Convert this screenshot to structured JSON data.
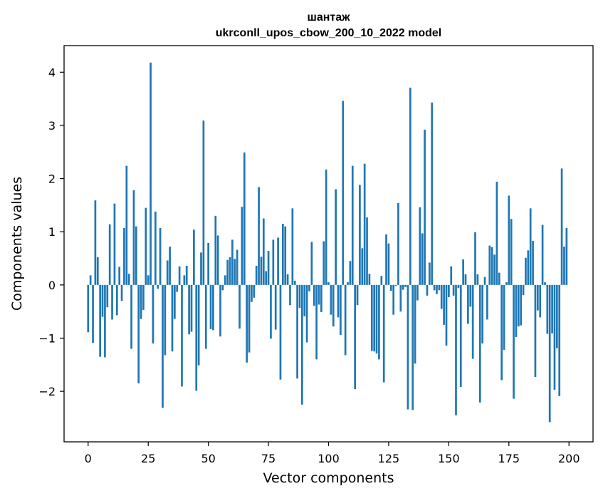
{
  "chart_data": {
    "type": "bar",
    "title": "шантаж",
    "subtitle": "ukrconll_upos_cbow_200_10_2022 model",
    "xlabel": "Vector components",
    "ylabel": "Components values",
    "xlim": [
      -10,
      210
    ],
    "ylim": [
      -2.95,
      4.5
    ],
    "xticks": [
      0,
      25,
      50,
      75,
      100,
      125,
      150,
      175,
      200
    ],
    "xtick_labels": [
      "0",
      "25",
      "50",
      "75",
      "100",
      "125",
      "150",
      "175",
      "200"
    ],
    "yticks": [
      -2,
      -1,
      0,
      1,
      2,
      3,
      4
    ],
    "ytick_labels": [
      "−2",
      "−1",
      "0",
      "1",
      "2",
      "3",
      "4"
    ],
    "grid": false,
    "bar_color": "#1f77b4",
    "x": [
      0,
      1,
      2,
      3,
      4,
      5,
      6,
      7,
      8,
      9,
      10,
      11,
      12,
      13,
      14,
      15,
      16,
      17,
      18,
      19,
      20,
      21,
      22,
      23,
      24,
      25,
      26,
      27,
      28,
      29,
      30,
      31,
      32,
      33,
      34,
      35,
      36,
      37,
      38,
      39,
      40,
      41,
      42,
      43,
      44,
      45,
      46,
      47,
      48,
      49,
      50,
      51,
      52,
      53,
      54,
      55,
      56,
      57,
      58,
      59,
      60,
      61,
      62,
      63,
      64,
      65,
      66,
      67,
      68,
      69,
      70,
      71,
      72,
      73,
      74,
      75,
      76,
      77,
      78,
      79,
      80,
      81,
      82,
      83,
      84,
      85,
      86,
      87,
      88,
      89,
      90,
      91,
      92,
      93,
      94,
      95,
      96,
      97,
      98,
      99,
      100,
      101,
      102,
      103,
      104,
      105,
      106,
      107,
      108,
      109,
      110,
      111,
      112,
      113,
      114,
      115,
      116,
      117,
      118,
      119,
      120,
      121,
      122,
      123,
      124,
      125,
      126,
      127,
      128,
      129,
      130,
      131,
      132,
      133,
      134,
      135,
      136,
      137,
      138,
      139,
      140,
      141,
      142,
      143,
      144,
      145,
      146,
      147,
      148,
      149,
      150,
      151,
      152,
      153,
      154,
      155,
      156,
      157,
      158,
      159,
      160,
      161,
      162,
      163,
      164,
      165,
      166,
      167,
      168,
      169,
      170,
      171,
      172,
      173,
      174,
      175,
      176,
      177,
      178,
      179,
      180,
      181,
      182,
      183,
      184,
      185,
      186,
      187,
      188,
      189,
      190,
      191,
      192,
      193,
      194,
      195,
      196,
      197,
      198,
      199
    ],
    "values": [
      -0.89,
      0.18,
      -1.09,
      1.59,
      0.52,
      -1.35,
      -0.6,
      -1.36,
      -0.42,
      1.14,
      -0.65,
      1.53,
      -0.57,
      0.34,
      -0.3,
      1.07,
      2.24,
      0.21,
      -1.2,
      1.78,
      1.1,
      -1.85,
      -0.64,
      -0.47,
      1.45,
      0.18,
      4.18,
      -1.1,
      1.38,
      -0.07,
      1.07,
      -2.31,
      -1.32,
      0.46,
      0.72,
      -1.25,
      -0.64,
      -0.13,
      0.35,
      -1.91,
      0.18,
      0.36,
      -0.93,
      -0.88,
      1.04,
      -1.99,
      -1.51,
      0.61,
      3.09,
      -1.2,
      0.79,
      -0.83,
      -0.85,
      1.3,
      0.93,
      -0.97,
      -0.1,
      0.18,
      0.47,
      0.52,
      0.85,
      0.49,
      0.66,
      -0.82,
      1.47,
      2.49,
      -1.46,
      -1.27,
      -0.32,
      -0.24,
      0.36,
      1.84,
      0.53,
      1.25,
      0.26,
      0.64,
      -1.01,
      0.85,
      -0.84,
      0.89,
      -1.78,
      1.15,
      1.1,
      0.2,
      -0.38,
      1.44,
      0.08,
      -1.76,
      -0.43,
      -2.25,
      -0.59,
      -1.08,
      -0.12,
      0.81,
      -0.39,
      -1.4,
      -0.37,
      -0.51,
      0.82,
      2.17,
      0.05,
      -0.56,
      -0.78,
      1.8,
      -0.61,
      -0.94,
      3.46,
      -1.32,
      0.05,
      0.45,
      2.24,
      -1.96,
      -0.38,
      1.88,
      0.69,
      2.28,
      1.27,
      0.21,
      -1.24,
      -1.25,
      -1.29,
      -1.4,
      0.17,
      -1.83,
      0.95,
      0.78,
      -0.11,
      -0.56,
      -0.02,
      1.54,
      -0.5,
      -0.09,
      -0.04,
      -2.34,
      3.71,
      -2.35,
      -1.48,
      -0.29,
      1.46,
      0.97,
      2.92,
      -0.2,
      0.42,
      3.43,
      -0.1,
      -0.17,
      -0.1,
      -0.45,
      -0.75,
      -1.14,
      -0.23,
      0.35,
      -0.2,
      -2.45,
      -0.06,
      -1.92,
      0.48,
      0.2,
      -0.73,
      -0.41,
      -1.39,
      0.99,
      0.2,
      -2.21,
      -1.1,
      0.15,
      -0.65,
      0.74,
      0.71,
      0.57,
      1.94,
      0.23,
      -1.79,
      -1.22,
      0.05,
      1.68,
      1.24,
      -2.14,
      -0.98,
      -0.78,
      -0.76,
      -0.19,
      0.51,
      0.65,
      1.44,
      0.83,
      -1.73,
      -0.48,
      -0.61,
      1.13,
      0.05,
      -0.92,
      -2.58,
      -0.91,
      -1.97,
      -1.19,
      -2.09,
      2.19,
      0.72,
      1.07
    ]
  }
}
